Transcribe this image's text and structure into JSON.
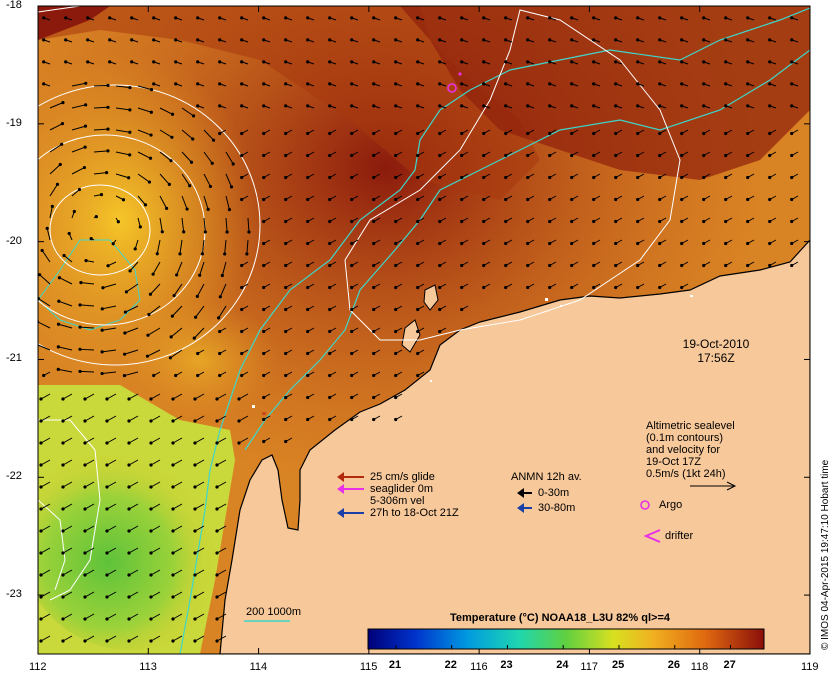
{
  "map": {
    "lat_ticks": [
      {
        "value": -18,
        "label": "-18"
      },
      {
        "value": -19,
        "label": "-19"
      },
      {
        "value": -20,
        "label": "-20"
      },
      {
        "value": -21,
        "label": "-21"
      },
      {
        "value": -22,
        "label": "-22"
      },
      {
        "value": -23,
        "label": "-23"
      }
    ],
    "lon_ticks": [
      {
        "value": 112,
        "label": "112"
      },
      {
        "value": 113,
        "label": "113"
      },
      {
        "value": 114,
        "label": "114"
      },
      {
        "value": 115,
        "label": "115"
      },
      {
        "value": 116,
        "label": "116"
      },
      {
        "value": 117,
        "label": "117"
      },
      {
        "value": 118,
        "label": "118"
      },
      {
        "value": 119,
        "label": "119"
      }
    ],
    "lon_range": [
      112,
      119
    ],
    "lat_range": [
      -18,
      -23.5
    ],
    "colors": {
      "land": "#f7c89a",
      "warm": "#c4571a",
      "hot": "#8b1a0c",
      "cool_yellow": "#f2c72a",
      "green": "#8bd43b",
      "isobath": "#3fd6c9",
      "contour": "#ffffff"
    }
  },
  "timestamp": {
    "date": "19-Oct-2010",
    "time": "17:56Z"
  },
  "altimetry_note": {
    "lines": [
      "Altimetric sealevel",
      "(0.1m contours)",
      "and velocity for",
      "19-Oct 17Z",
      "0.5m/s (1kt 24h)"
    ]
  },
  "glider_legend": {
    "items": [
      {
        "label": "25 cm/s glide",
        "color": "#b22a0e"
      },
      {
        "label": "seaglider 0m",
        "color": "#e830e8"
      },
      {
        "label": "5-306m vel",
        "color": ""
      },
      {
        "label": "27h to 18-Oct 21Z",
        "color": "#1b3fa8"
      }
    ]
  },
  "anmn_legend": {
    "title": "ANMN 12h av.",
    "items": [
      {
        "label": "0-30m",
        "color": "#000000"
      },
      {
        "label": "30-80m",
        "color": "#1b3fa8"
      }
    ]
  },
  "markers": {
    "argo": "Argo",
    "drifter": "drifter"
  },
  "isobath_legend": "200  1000m",
  "colorbar": {
    "title": "Temperature (°C) NOAA18_L3U 82% ql>=4",
    "ticks": [
      {
        "value": 21,
        "label": "21"
      },
      {
        "value": 22,
        "label": "22"
      },
      {
        "value": 23,
        "label": "23"
      },
      {
        "value": 24,
        "label": "24"
      },
      {
        "value": 25,
        "label": "25"
      },
      {
        "value": 26,
        "label": "26"
      },
      {
        "value": 27,
        "label": "27"
      }
    ],
    "range": [
      20.5,
      27.6
    ]
  },
  "credit": "© IMOS 04-Apr-2015 19:47:10 Hobart time"
}
